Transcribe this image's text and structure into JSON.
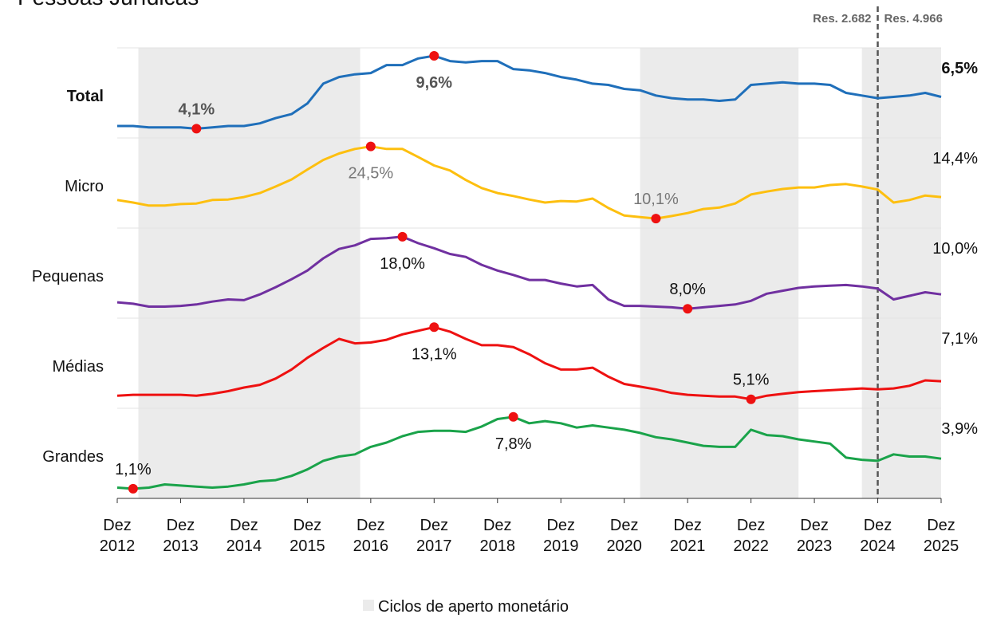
{
  "chart_data": {
    "type": "line",
    "title": "Pessoas Jurídicas",
    "x": [
      "2012-12",
      "2013-03",
      "2013-06",
      "2013-09",
      "2013-12",
      "2014-03",
      "2014-06",
      "2014-09",
      "2014-12",
      "2015-03",
      "2015-06",
      "2015-09",
      "2015-12",
      "2016-03",
      "2016-06",
      "2016-09",
      "2016-12",
      "2017-03",
      "2017-06",
      "2017-09",
      "2017-12",
      "2018-03",
      "2018-06",
      "2018-09",
      "2018-12",
      "2019-03",
      "2019-06",
      "2019-09",
      "2019-12",
      "2020-03",
      "2020-06",
      "2020-09",
      "2020-12",
      "2021-03",
      "2021-06",
      "2021-09",
      "2021-12",
      "2022-03",
      "2022-06",
      "2022-09",
      "2022-12",
      "2023-03",
      "2023-06",
      "2023-09",
      "2023-12",
      "2024-03",
      "2024-06",
      "2024-09",
      "2024-12",
      "2025-03",
      "2025-06",
      "2025-09",
      "2025-12"
    ],
    "xlim": [
      "2012-12",
      "2025-12"
    ],
    "xticks": [
      {
        "value": "2012-12",
        "label": "Dez 2012"
      },
      {
        "value": "2013-12",
        "label": "Dez 2013"
      },
      {
        "value": "2014-12",
        "label": "Dez 2014"
      },
      {
        "value": "2015-12",
        "label": "Dez 2015"
      },
      {
        "value": "2016-12",
        "label": "Dez 2016"
      },
      {
        "value": "2017-12",
        "label": "Dez 2017"
      },
      {
        "value": "2018-12",
        "label": "Dez 2018"
      },
      {
        "value": "2019-12",
        "label": "Dez 2019"
      },
      {
        "value": "2020-12",
        "label": "Dez 2020"
      },
      {
        "value": "2021-12",
        "label": "Dez 2021"
      },
      {
        "value": "2022-12",
        "label": "Dez 2022"
      },
      {
        "value": "2023-12",
        "label": "Dez 2023"
      },
      {
        "value": "2024-12",
        "label": "Dez 2024"
      },
      {
        "value": "2025-12",
        "label": "Dez 2025"
      }
    ],
    "series": [
      {
        "name": "Total",
        "color": "#1f6fba",
        "ylim": [
          3.4,
          10.2
        ],
        "values": [
          4.3,
          4.3,
          4.2,
          4.2,
          4.2,
          4.1,
          4.2,
          4.3,
          4.3,
          4.5,
          4.9,
          5.2,
          6.0,
          7.5,
          8.0,
          8.2,
          8.3,
          8.9,
          8.9,
          9.4,
          9.6,
          9.2,
          9.1,
          9.2,
          9.2,
          8.6,
          8.5,
          8.3,
          8.0,
          7.8,
          7.5,
          7.4,
          7.1,
          7.0,
          6.6,
          6.4,
          6.3,
          6.3,
          6.2,
          6.3,
          7.4,
          7.5,
          7.6,
          7.5,
          7.5,
          7.4,
          6.8,
          6.6,
          6.4,
          6.5,
          6.6,
          6.8,
          6.5
        ],
        "value_labels": [
          null,
          null,
          null,
          null,
          null,
          "4,1%",
          null,
          null,
          null,
          null,
          null,
          null,
          null,
          null,
          null,
          null,
          null,
          null,
          null,
          null,
          "9,6%",
          null,
          null,
          null,
          null,
          null,
          null,
          null,
          null,
          null,
          null,
          null,
          null,
          null,
          null,
          null,
          null,
          null,
          null,
          null,
          null,
          null,
          null,
          null,
          null,
          null,
          null,
          null,
          null,
          null,
          null,
          null,
          "6,5%"
        ]
      },
      {
        "name": "Micro",
        "color": "#fdbf0f",
        "ylim": [
          8.2,
          26.2
        ],
        "values": [
          13.8,
          13.3,
          12.7,
          12.7,
          13.0,
          13.1,
          13.8,
          13.9,
          14.4,
          15.2,
          16.5,
          17.9,
          19.9,
          21.8,
          23.1,
          24.0,
          24.5,
          24.0,
          24.0,
          22.4,
          20.7,
          19.7,
          17.8,
          16.2,
          15.2,
          14.6,
          13.9,
          13.3,
          13.6,
          13.5,
          14.1,
          12.2,
          10.7,
          10.4,
          10.1,
          10.6,
          11.2,
          12.0,
          12.3,
          13.1,
          14.9,
          15.5,
          16.0,
          16.3,
          16.3,
          16.8,
          17.0,
          16.5,
          15.9,
          13.3,
          13.8,
          14.7,
          14.4
        ],
        "value_labels": [
          null,
          null,
          null,
          null,
          null,
          null,
          null,
          null,
          null,
          null,
          null,
          null,
          null,
          null,
          null,
          null,
          "24,5%",
          null,
          null,
          null,
          null,
          null,
          null,
          null,
          null,
          null,
          null,
          null,
          null,
          null,
          null,
          null,
          null,
          null,
          "10,1%",
          null,
          null,
          null,
          null,
          null,
          null,
          null,
          null,
          null,
          null,
          null,
          null,
          null,
          null,
          null,
          null,
          null,
          "14,4%"
        ]
      },
      {
        "name": "Pequenas",
        "color": "#7030a0",
        "ylim": [
          6.7,
          19.2
        ],
        "values": [
          8.9,
          8.7,
          8.3,
          8.3,
          8.4,
          8.6,
          9.0,
          9.3,
          9.2,
          10.0,
          11.0,
          12.1,
          13.3,
          15.0,
          16.3,
          16.8,
          17.7,
          17.8,
          18.0,
          17.1,
          16.4,
          15.6,
          15.2,
          14.1,
          13.3,
          12.7,
          12.0,
          12.0,
          11.5,
          11.1,
          11.3,
          9.3,
          8.4,
          8.4,
          8.3,
          8.2,
          8.0,
          8.2,
          8.4,
          8.6,
          9.1,
          10.1,
          10.5,
          10.9,
          11.1,
          11.2,
          11.3,
          11.1,
          10.8,
          9.3,
          9.8,
          10.3,
          10.0
        ],
        "value_labels": [
          null,
          null,
          null,
          null,
          null,
          null,
          null,
          null,
          null,
          null,
          null,
          null,
          null,
          null,
          null,
          null,
          null,
          null,
          "18,0%",
          null,
          null,
          null,
          null,
          null,
          null,
          null,
          null,
          null,
          null,
          null,
          null,
          null,
          null,
          null,
          null,
          null,
          "8,0%",
          null,
          null,
          null,
          null,
          null,
          null,
          null,
          null,
          null,
          null,
          null,
          null,
          null,
          null,
          null,
          "10,0%"
        ]
      },
      {
        "name": "Médias",
        "color": "#ee1111",
        "ylim": [
          4.1,
          14.1
        ],
        "values": [
          5.5,
          5.6,
          5.6,
          5.6,
          5.6,
          5.5,
          5.7,
          6.0,
          6.4,
          6.7,
          7.4,
          8.4,
          9.7,
          10.8,
          11.8,
          11.3,
          11.4,
          11.7,
          12.3,
          12.7,
          13.1,
          12.6,
          11.8,
          11.1,
          11.1,
          10.9,
          10.1,
          9.1,
          8.4,
          8.4,
          8.6,
          7.6,
          6.8,
          6.5,
          6.2,
          5.8,
          5.6,
          5.5,
          5.4,
          5.4,
          5.1,
          5.5,
          5.7,
          5.9,
          6.0,
          6.1,
          6.2,
          6.3,
          6.2,
          6.3,
          6.6,
          7.2,
          7.1
        ],
        "value_labels": [
          null,
          null,
          null,
          null,
          null,
          null,
          null,
          null,
          null,
          null,
          null,
          null,
          null,
          null,
          null,
          null,
          null,
          null,
          null,
          null,
          "13,1%",
          null,
          null,
          null,
          null,
          null,
          null,
          null,
          null,
          null,
          null,
          null,
          null,
          null,
          null,
          null,
          null,
          null,
          null,
          null,
          "5,1%",
          null,
          null,
          null,
          null,
          null,
          null,
          null,
          null,
          null,
          null,
          null,
          "7,1%"
        ]
      },
      {
        "name": "Grandes",
        "color": "#1aa34a",
        "ylim": [
          0.2,
          8.6
        ],
        "values": [
          1.2,
          1.1,
          1.2,
          1.5,
          1.4,
          1.3,
          1.2,
          1.3,
          1.5,
          1.8,
          1.9,
          2.3,
          2.9,
          3.7,
          4.1,
          4.3,
          5.0,
          5.4,
          6.0,
          6.4,
          6.5,
          6.5,
          6.4,
          6.9,
          7.6,
          7.8,
          7.2,
          7.4,
          7.2,
          6.8,
          7.0,
          6.8,
          6.6,
          6.3,
          5.9,
          5.7,
          5.4,
          5.1,
          5.0,
          5.0,
          6.6,
          6.1,
          6.0,
          5.7,
          5.5,
          5.3,
          4.0,
          3.8,
          3.7,
          4.3,
          4.1,
          4.1,
          3.9
        ],
        "value_labels": [
          null,
          "1,1%",
          null,
          null,
          null,
          null,
          null,
          null,
          null,
          null,
          null,
          null,
          null,
          null,
          null,
          null,
          null,
          null,
          null,
          null,
          null,
          null,
          null,
          null,
          null,
          "7,8%",
          null,
          null,
          null,
          null,
          null,
          null,
          null,
          null,
          null,
          null,
          null,
          null,
          null,
          null,
          null,
          null,
          null,
          null,
          null,
          null,
          null,
          null,
          null,
          null,
          null,
          null,
          "3,9%"
        ]
      }
    ],
    "shaded_periods": {
      "name": "Ciclos de aperto monetário",
      "color": "#ebebeb",
      "ranges": [
        [
          "2013-04",
          "2016-10"
        ],
        [
          "2021-03",
          "2023-09"
        ],
        [
          "2024-09",
          "2025-12"
        ]
      ]
    },
    "reference_line": {
      "x": "2024-12",
      "labels": [
        "Res. 2.682",
        "Res. 4.966"
      ]
    }
  }
}
